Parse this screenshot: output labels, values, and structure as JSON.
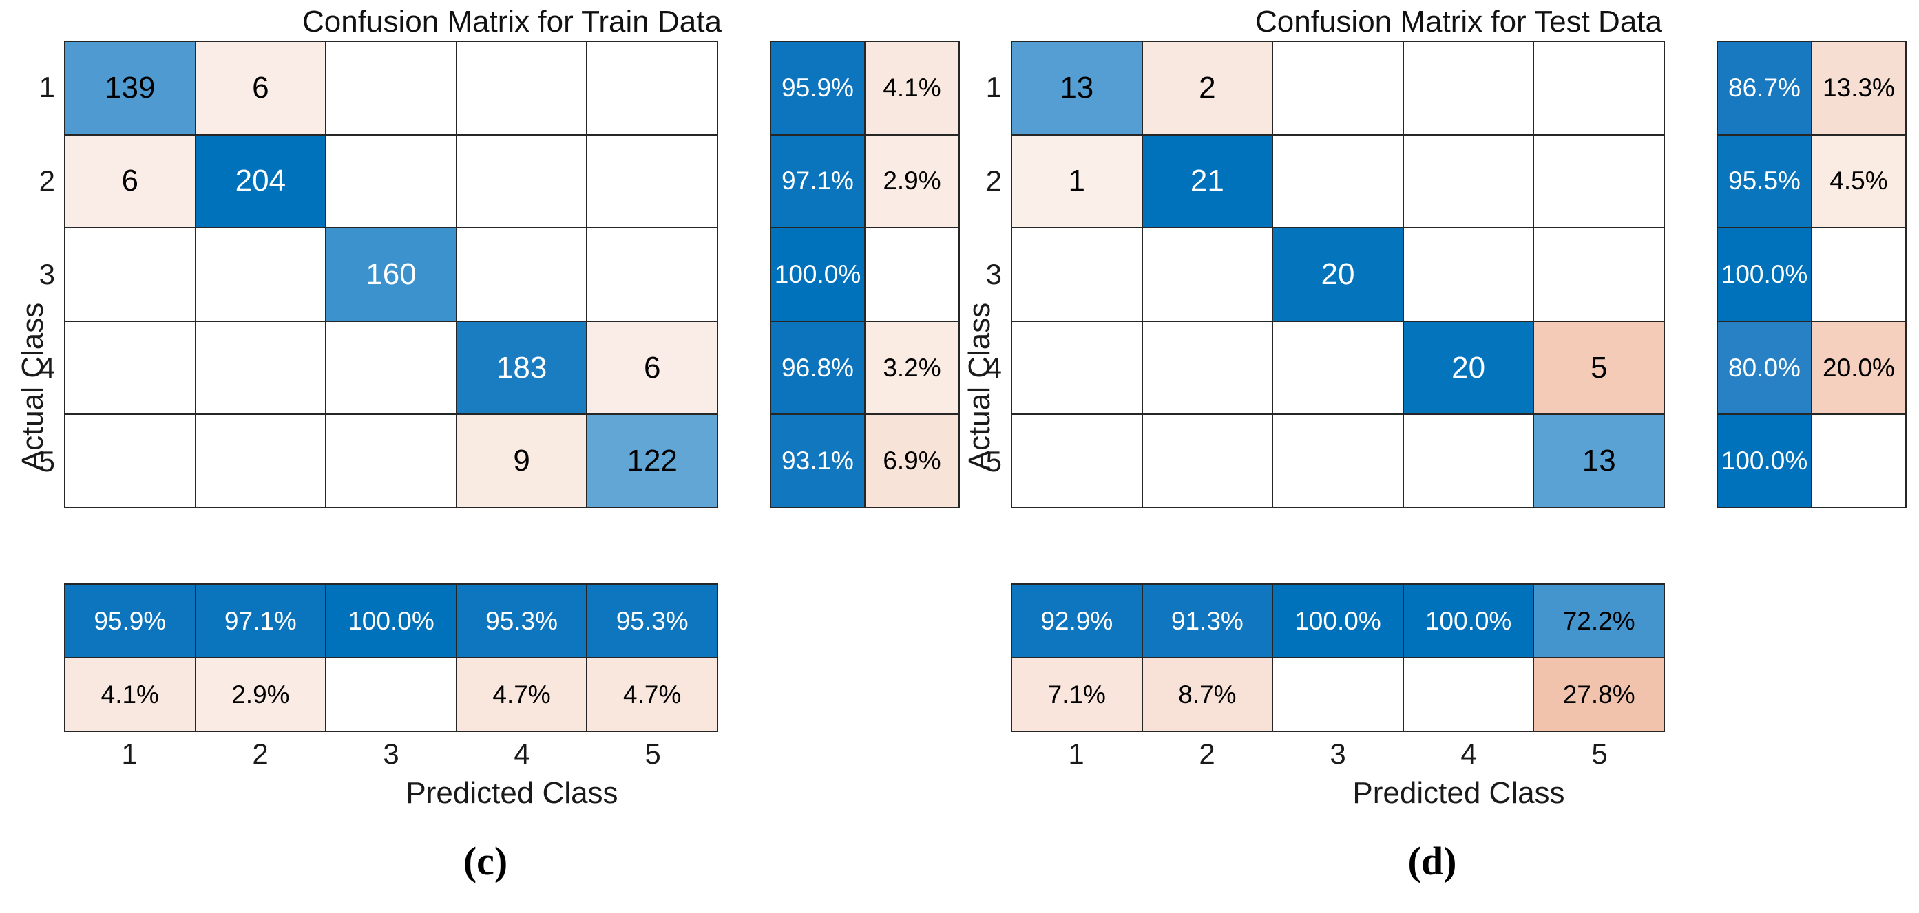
{
  "figure": {
    "background": "#ffffff",
    "grid_line_color": "#262626",
    "diagonal_color_max": "#0072BC",
    "offdiagonal_color": "#F4CBB7"
  },
  "chart_data": [
    {
      "type": "heatmap",
      "variant": "confusion-matrix",
      "title": "Confusion Matrix for Train Data",
      "xlabel": "Predicted Class",
      "ylabel": "Actual Class",
      "caption": "(c)",
      "classes": [
        "1",
        "2",
        "3",
        "4",
        "5"
      ],
      "legend_position": "none",
      "grid": "on",
      "matrix": [
        [
          139,
          6,
          null,
          null,
          null
        ],
        [
          6,
          204,
          null,
          null,
          null
        ],
        [
          null,
          null,
          160,
          null,
          null
        ],
        [
          null,
          null,
          null,
          183,
          6
        ],
        [
          null,
          null,
          null,
          9,
          122
        ]
      ],
      "matrix_bg": [
        [
          "#4F9BD1",
          "#FAEDE7",
          null,
          null,
          null
        ],
        [
          "#FAEDE7",
          "#0072BC",
          null,
          null,
          null
        ],
        [
          null,
          null,
          "#3B92CC",
          null,
          null
        ],
        [
          null,
          null,
          null,
          "#1A7CC1",
          "#FAEDE7"
        ],
        [
          null,
          null,
          null,
          "#F9EAE2",
          "#61A6D5"
        ]
      ],
      "matrix_fg": [
        [
          "#000000",
          "#000000",
          null,
          null,
          null
        ],
        [
          "#000000",
          "#ffffff",
          null,
          null,
          null
        ],
        [
          null,
          null,
          "#ffffff",
          null,
          null
        ],
        [
          null,
          null,
          null,
          "#ffffff",
          "#000000"
        ],
        [
          null,
          null,
          null,
          "#000000",
          "#000000"
        ]
      ],
      "row_summary": [
        [
          95.9,
          4.1
        ],
        [
          97.1,
          2.9
        ],
        [
          100.0,
          null
        ],
        [
          96.8,
          3.2
        ],
        [
          93.1,
          6.9
        ]
      ],
      "row_summary_bg": [
        [
          "#0C75BE",
          "#F9E8E0"
        ],
        [
          "#0A74BD",
          "#FAECE5"
        ],
        [
          "#0072BC",
          null
        ],
        [
          "#0B74BD",
          "#FAEBE3"
        ],
        [
          "#1177BF",
          "#F8E3D8"
        ]
      ],
      "row_summary_fg": [
        [
          "#ffffff",
          "#000000"
        ],
        [
          "#ffffff",
          "#000000"
        ],
        [
          "#ffffff",
          null
        ],
        [
          "#ffffff",
          "#000000"
        ],
        [
          "#ffffff",
          "#000000"
        ]
      ],
      "col_summary": [
        [
          95.9,
          97.1,
          100.0,
          95.3,
          95.3
        ],
        [
          4.1,
          2.9,
          null,
          4.7,
          4.7
        ]
      ],
      "col_summary_bg": [
        [
          "#0C75BE",
          "#0A74BD",
          "#0072BC",
          "#0D76BE",
          "#0D76BE"
        ],
        [
          "#F9E8E0",
          "#FAECE5",
          null,
          "#F9E7DE",
          "#F9E7DE"
        ]
      ],
      "col_summary_fg": [
        [
          "#ffffff",
          "#ffffff",
          "#ffffff",
          "#ffffff",
          "#ffffff"
        ],
        [
          "#000000",
          "#000000",
          null,
          "#000000",
          "#000000"
        ]
      ]
    },
    {
      "type": "heatmap",
      "variant": "confusion-matrix",
      "title": "Confusion Matrix for Test Data",
      "xlabel": "Predicted Class",
      "ylabel": "Actual Class",
      "caption": "(d)",
      "classes": [
        "1",
        "2",
        "3",
        "4",
        "5"
      ],
      "legend_position": "none",
      "grid": "on",
      "matrix": [
        [
          13,
          2,
          null,
          null,
          null
        ],
        [
          1,
          21,
          null,
          null,
          null
        ],
        [
          null,
          null,
          20,
          null,
          null
        ],
        [
          null,
          null,
          null,
          20,
          5
        ],
        [
          null,
          null,
          null,
          null,
          13
        ]
      ],
      "matrix_bg": [
        [
          "#549ED3",
          "#F9E8E0",
          null,
          null,
          null
        ],
        [
          "#FBEFEA",
          "#0072BC",
          null,
          null,
          null
        ],
        [
          null,
          null,
          "#0475BD",
          null,
          null
        ],
        [
          null,
          null,
          null,
          "#0475BD",
          "#F4CBB7"
        ],
        [
          null,
          null,
          null,
          null,
          "#5AA2D4"
        ]
      ],
      "matrix_fg": [
        [
          "#000000",
          "#000000",
          null,
          null,
          null
        ],
        [
          "#000000",
          "#ffffff",
          null,
          null,
          null
        ],
        [
          null,
          null,
          "#ffffff",
          null,
          null
        ],
        [
          null,
          null,
          null,
          "#ffffff",
          "#000000"
        ],
        [
          null,
          null,
          null,
          null,
          "#000000"
        ]
      ],
      "row_summary": [
        [
          86.7,
          13.3
        ],
        [
          95.5,
          4.5
        ],
        [
          100.0,
          null
        ],
        [
          80.0,
          20.0
        ],
        [
          100.0,
          null
        ]
      ],
      "row_summary_bg": [
        [
          "#1879C0",
          "#F7DED2"
        ],
        [
          "#0875BD",
          "#FAEBE3"
        ],
        [
          "#0072BC",
          null
        ],
        [
          "#2781C4",
          "#F6D0BF"
        ],
        [
          "#0072BC",
          null
        ]
      ],
      "row_summary_fg": [
        [
          "#ffffff",
          "#000000"
        ],
        [
          "#ffffff",
          "#000000"
        ],
        [
          "#ffffff",
          null
        ],
        [
          "#ffffff",
          "#000000"
        ],
        [
          "#ffffff",
          null
        ]
      ],
      "col_summary": [
        [
          92.9,
          91.3,
          100.0,
          100.0,
          72.2
        ],
        [
          7.1,
          8.7,
          null,
          null,
          27.8
        ]
      ],
      "col_summary_bg": [
        [
          "#0D76BE",
          "#1076BF",
          "#0072BC",
          "#0072BC",
          "#4495CE"
        ],
        [
          "#F9E5DB",
          "#F8E2D7",
          null,
          null,
          "#F1C3AC"
        ]
      ],
      "col_summary_fg": [
        [
          "#ffffff",
          "#ffffff",
          "#ffffff",
          "#ffffff",
          "#000000"
        ],
        [
          "#000000",
          "#000000",
          null,
          null,
          "#000000"
        ]
      ]
    }
  ]
}
